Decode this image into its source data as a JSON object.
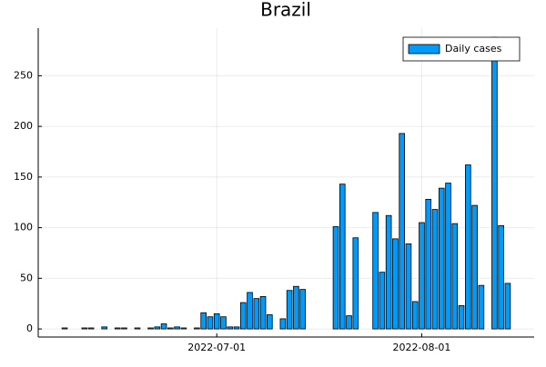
{
  "chart_data": {
    "type": "bar",
    "title": "Brazil",
    "x": [
      "2022-06-08",
      "2022-06-11",
      "2022-06-12",
      "2022-06-14",
      "2022-06-16",
      "2022-06-17",
      "2022-06-19",
      "2022-06-21",
      "2022-06-22",
      "2022-06-23",
      "2022-06-24",
      "2022-06-25",
      "2022-06-26",
      "2022-06-28",
      "2022-06-29",
      "2022-06-30",
      "2022-07-01",
      "2022-07-02",
      "2022-07-03",
      "2022-07-04",
      "2022-07-05",
      "2022-07-06",
      "2022-07-07",
      "2022-07-08",
      "2022-07-09",
      "2022-07-11",
      "2022-07-12",
      "2022-07-13",
      "2022-07-14",
      "2022-07-19",
      "2022-07-20",
      "2022-07-21",
      "2022-07-22",
      "2022-07-25",
      "2022-07-26",
      "2022-07-27",
      "2022-07-28",
      "2022-07-29",
      "2022-07-30",
      "2022-07-31",
      "2022-08-01",
      "2022-08-02",
      "2022-08-03",
      "2022-08-04",
      "2022-08-05",
      "2022-08-06",
      "2022-08-07",
      "2022-08-08",
      "2022-08-09",
      "2022-08-10",
      "2022-08-12",
      "2022-08-13",
      "2022-08-14"
    ],
    "series": [
      {
        "name": "Daily cases",
        "color": "#009af9",
        "values": [
          1,
          1,
          1,
          2,
          1,
          1,
          1,
          1,
          2,
          5,
          1,
          2,
          1,
          1,
          16,
          12,
          15,
          12,
          2,
          2,
          26,
          36,
          30,
          32,
          14,
          10,
          38,
          42,
          39,
          101,
          143,
          13,
          90,
          115,
          56,
          112,
          89,
          193,
          84,
          27,
          105,
          128,
          118,
          139,
          144,
          104,
          23,
          162,
          122,
          43,
          288,
          102,
          45
        ]
      }
    ],
    "xlim": [
      "2022-06-04",
      "2022-08-18"
    ],
    "xticks": [
      "2022-07-01",
      "2022-08-01"
    ],
    "ylim": [
      -8,
      297
    ],
    "yticks": [
      0,
      50,
      100,
      150,
      200,
      250
    ],
    "grid": true,
    "legend": "top-right"
  }
}
